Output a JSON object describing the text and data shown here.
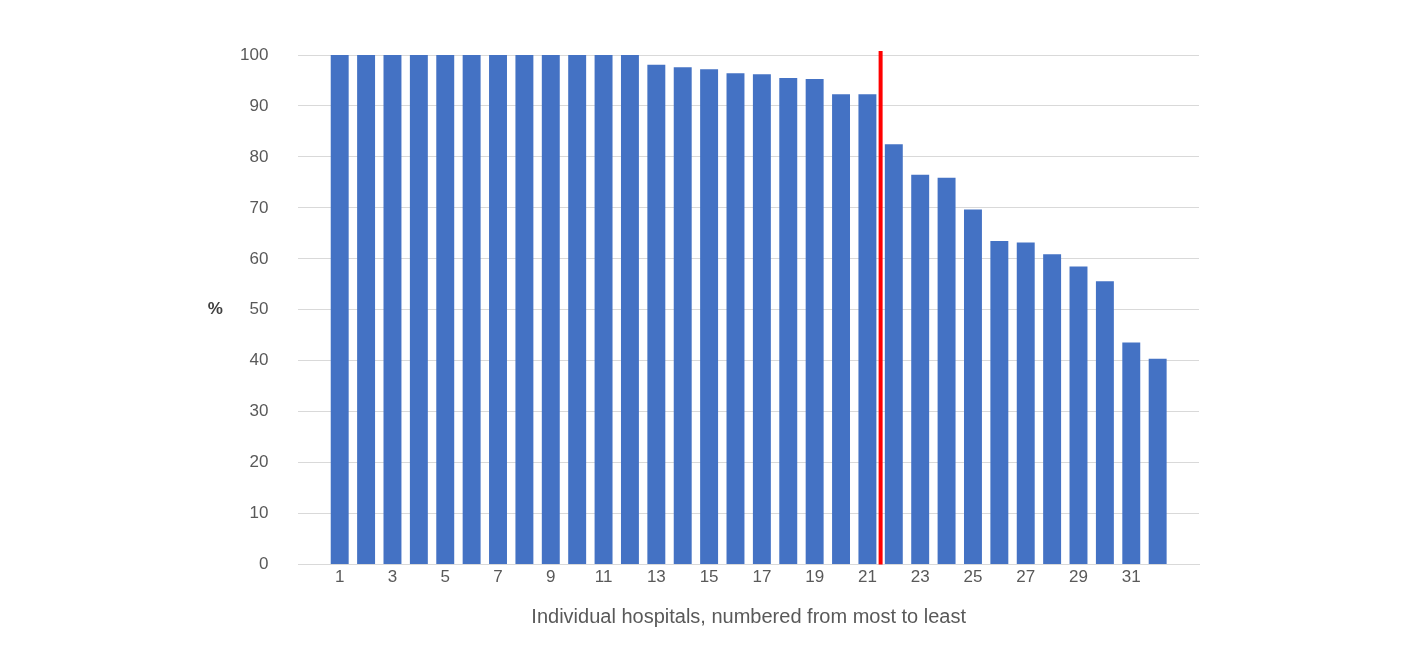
{
  "chart_data": {
    "type": "bar",
    "xlabel": "Individual hospitals, numbered from most to least",
    "ylabel": "%",
    "x": [
      1,
      2,
      3,
      4,
      5,
      6,
      7,
      8,
      9,
      10,
      11,
      12,
      13,
      14,
      15,
      16,
      17,
      18,
      19,
      20,
      21,
      22,
      23,
      24,
      25,
      26,
      27,
      28,
      29,
      30,
      31,
      32
    ],
    "values": [
      100,
      100,
      100,
      100,
      100,
      100,
      100,
      100,
      100,
      100,
      100,
      100,
      98.1,
      97.6,
      97.2,
      96.4,
      96.2,
      95.5,
      95.3,
      92.3,
      92.3,
      82.5,
      76.5,
      75.9,
      69.7,
      63.5,
      63.2,
      60.9,
      58.5,
      55.6,
      43.6,
      40.4
    ],
    "color": "#4472c4",
    "xlim": [
      0.5,
      32.5
    ],
    "xticks": [
      1,
      3,
      5,
      7,
      9,
      11,
      13,
      15,
      17,
      19,
      21,
      23,
      25,
      27,
      29,
      31
    ],
    "ylim": [
      0,
      100
    ],
    "yticks": [
      0,
      10,
      20,
      30,
      40,
      50,
      60,
      70,
      80,
      90,
      100
    ],
    "grid": "y",
    "legend": false,
    "ref_lines": [
      {
        "axis": "x",
        "value": 21.5,
        "color": "#ff0000"
      }
    ]
  }
}
